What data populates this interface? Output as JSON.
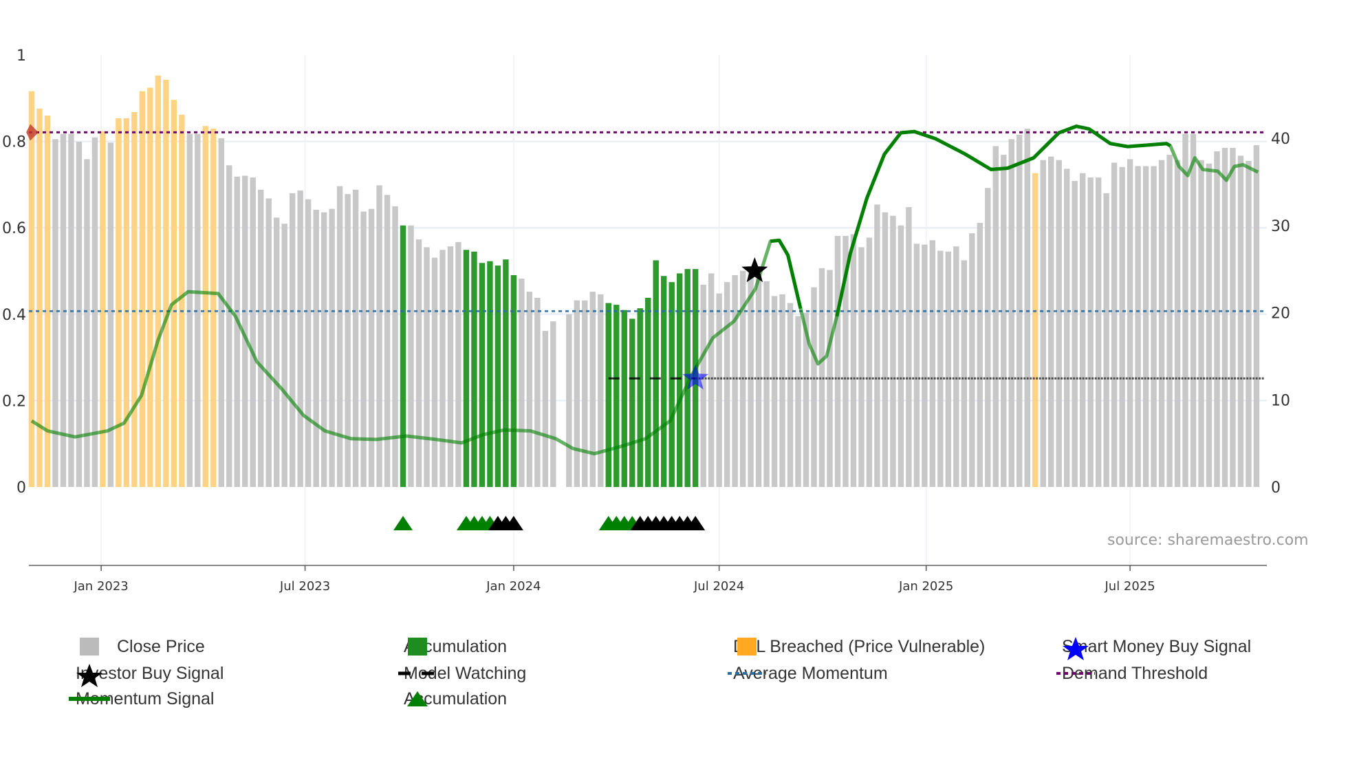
{
  "chart_data": {
    "type": "bar",
    "title": "",
    "source_note": "source: sharemaestro.com",
    "left_axis": {
      "range": [
        0,
        1
      ],
      "ticks": [
        "0",
        "0.2",
        "0.4",
        "0.6",
        "0.8",
        "1"
      ],
      "tick_values": [
        0,
        0.2,
        0.4,
        0.6,
        0.8,
        1
      ]
    },
    "right_axis": {
      "range": [
        0,
        40
      ],
      "ticks": [
        "0",
        "10",
        "20",
        "30",
        "40"
      ],
      "tick_values": [
        0,
        10,
        20,
        30,
        40
      ]
    },
    "x_axis": {
      "unit": "weekly bar index",
      "ticks": [
        {
          "label": "Jan 2023",
          "bar": 9.8
        },
        {
          "label": "Jul 2023",
          "bar": 35.6
        },
        {
          "label": "Jan 2024",
          "bar": 62.0
        },
        {
          "label": "Jul 2024",
          "bar": 88.0
        },
        {
          "label": "Jan 2025",
          "bar": 114.2
        },
        {
          "label": "Jul 2025",
          "bar": 140.0
        }
      ]
    },
    "close_price": [
      45.4,
      43.4,
      42.6,
      39.9,
      40.5,
      40.5,
      39.6,
      37.6,
      40.1,
      40.8,
      39.5,
      42.3,
      42.3,
      43.0,
      45.4,
      45.8,
      47.2,
      46.7,
      44.4,
      42.7,
      40.5,
      40.5,
      41.4,
      41.1,
      40.0,
      36.9,
      35.6,
      35.7,
      35.5,
      34.1,
      33.1,
      30.9,
      30.2,
      33.7,
      34.0,
      33.0,
      31.8,
      31.5,
      31.9,
      34.5,
      33.6,
      34.1,
      31.6,
      31.9,
      34.6,
      33.5,
      32.2,
      30.0,
      30.0,
      28.4,
      27.5,
      26.3,
      27.2,
      27.6,
      28.1,
      27.2,
      27.0,
      25.7,
      25.9,
      25.4,
      26.1,
      24.3,
      23.9,
      22.4,
      21.7,
      17.9,
      19.0,
      null,
      19.8,
      21.4,
      21.4,
      22.4,
      22.1,
      21.1,
      20.9,
      20.3,
      19.3,
      20.5,
      21.7,
      26.0,
      24.2,
      23.5,
      24.5,
      25.0,
      25.0,
      23.2,
      24.5,
      22.2,
      23.5,
      24.3,
      24.8,
      24.7,
      24.2,
      23.6,
      21.9,
      22.1,
      21.1,
      19.6,
      20.0,
      22.9,
      25.1,
      24.9,
      28.8,
      28.8,
      29.0,
      27.5,
      28.6,
      32.4,
      31.5,
      31.1,
      30.0,
      32.1,
      27.9,
      27.8,
      28.3,
      27.1,
      27.0,
      27.6,
      26.0,
      29.1,
      30.3,
      34.3,
      39.1,
      38.1,
      39.9,
      40.4,
      41.1,
      36.0,
      37.5,
      37.9,
      37.5,
      36.5,
      35.1,
      36.0,
      35.5,
      35.5,
      33.7,
      37.2,
      36.7,
      37.6,
      36.8,
      36.8,
      36.8,
      37.5,
      38.1,
      37.5,
      40.5,
      40.5,
      37.5,
      37.1,
      38.5,
      38.9,
      38.9,
      38.0,
      37.4,
      39.2
    ],
    "dtl_breached_bars": [
      1,
      2,
      3,
      10,
      12,
      13,
      14,
      15,
      16,
      17,
      18,
      19,
      20,
      23,
      24,
      128
    ],
    "accumulation_bars": [
      48,
      56,
      57,
      58,
      59,
      60,
      61,
      62,
      74,
      75,
      76,
      77,
      78,
      79,
      80,
      81,
      82,
      83,
      84,
      85
    ],
    "momentum_signal": [
      [
        1,
        0.153
      ],
      [
        3,
        0.13
      ],
      [
        6.5,
        0.116
      ],
      [
        10.6,
        0.13
      ],
      [
        12.7,
        0.148
      ],
      [
        14.9,
        0.212
      ],
      [
        17,
        0.34
      ],
      [
        18.7,
        0.422
      ],
      [
        20.8,
        0.452
      ],
      [
        24.6,
        0.448
      ],
      [
        26.8,
        0.395
      ],
      [
        29.5,
        0.29
      ],
      [
        32.7,
        0.226
      ],
      [
        35.4,
        0.166
      ],
      [
        38.1,
        0.13
      ],
      [
        41.4,
        0.112
      ],
      [
        44.6,
        0.11
      ],
      [
        48.4,
        0.118
      ],
      [
        52.2,
        0.11
      ],
      [
        55.4,
        0.102
      ],
      [
        58.1,
        0.121
      ],
      [
        60.8,
        0.132
      ],
      [
        64.1,
        0.13
      ],
      [
        67.3,
        0.112
      ],
      [
        69.5,
        0.089
      ],
      [
        72.2,
        0.077
      ],
      [
        75.4,
        0.093
      ],
      [
        78.7,
        0.112
      ],
      [
        81.8,
        0.153
      ],
      [
        84.5,
        0.258
      ],
      [
        87.2,
        0.345
      ],
      [
        89.9,
        0.384
      ],
      [
        92.6,
        0.459
      ],
      [
        94.5,
        0.569
      ],
      [
        95.6,
        0.571
      ],
      [
        96.7,
        0.537
      ],
      [
        98.3,
        0.413
      ],
      [
        99.4,
        0.331
      ],
      [
        100.5,
        0.285
      ],
      [
        101.6,
        0.303
      ],
      [
        102.9,
        0.395
      ],
      [
        104.6,
        0.541
      ],
      [
        106.7,
        0.669
      ],
      [
        108.9,
        0.77
      ],
      [
        111,
        0.82
      ],
      [
        112.7,
        0.823
      ],
      [
        115.4,
        0.806
      ],
      [
        119.1,
        0.771
      ],
      [
        122.4,
        0.735
      ],
      [
        124.5,
        0.738
      ],
      [
        127.8,
        0.762
      ],
      [
        131,
        0.82
      ],
      [
        133.2,
        0.835
      ],
      [
        134.8,
        0.829
      ],
      [
        137.5,
        0.795
      ],
      [
        139.7,
        0.788
      ],
      [
        144.6,
        0.795
      ],
      [
        145.1,
        0.79
      ],
      [
        146.2,
        0.742
      ],
      [
        147.3,
        0.721
      ],
      [
        148.2,
        0.762
      ],
      [
        149.2,
        0.735
      ],
      [
        151.1,
        0.731
      ],
      [
        152.2,
        0.71
      ],
      [
        153.2,
        0.742
      ],
      [
        154.3,
        0.746
      ],
      [
        156.2,
        0.729
      ]
    ],
    "momentum_strong_ranges": [
      [
        93.5,
        98.3
      ],
      [
        102.9,
        145.1
      ]
    ],
    "average_momentum": 0.407,
    "demand_threshold": 0.821,
    "model_watching": {
      "level_price": 12.46,
      "dashed_from_bar": 74,
      "dashed_to_bar": 85,
      "dotted_to_bar": 157
    },
    "smart_money_buy_signal": {
      "bar": 85,
      "price": 12.46
    },
    "investor_buy_signal": {
      "bar": 92.5,
      "momentum": 0.5
    },
    "dtl_marker": {
      "bar": 1,
      "momentum": 0.821
    },
    "accumulation_triangles_green": [
      48,
      56,
      57,
      58,
      59,
      74,
      75,
      76,
      77
    ],
    "accumulation_triangles_black": [
      60,
      61,
      62,
      78,
      79,
      80,
      81,
      82,
      83,
      84,
      85
    ],
    "colors": {
      "close": "#c8c8c8",
      "accumulation": "#2e9a2e",
      "dtl": "#ffd384",
      "momentum": "#008000",
      "average": "#2b6ea3",
      "demand": "#6b0a6b",
      "smart_money": "#0000ff",
      "investor": "#000000"
    }
  },
  "legend": {
    "close_price": "Close Price",
    "accumulation_bar": "Accumulation",
    "dtl_breached": "DTL Breached (Price Vulnerable)",
    "smart_money": "Smart Money Buy Signal",
    "investor_buy": "Investor Buy Signal",
    "model_watching": "Model Watching",
    "average_momentum": "Average Momentum",
    "demand_threshold": "Demand Threshold",
    "momentum_signal": "Momentum Signal",
    "accumulation_marker": "Accumulation"
  }
}
